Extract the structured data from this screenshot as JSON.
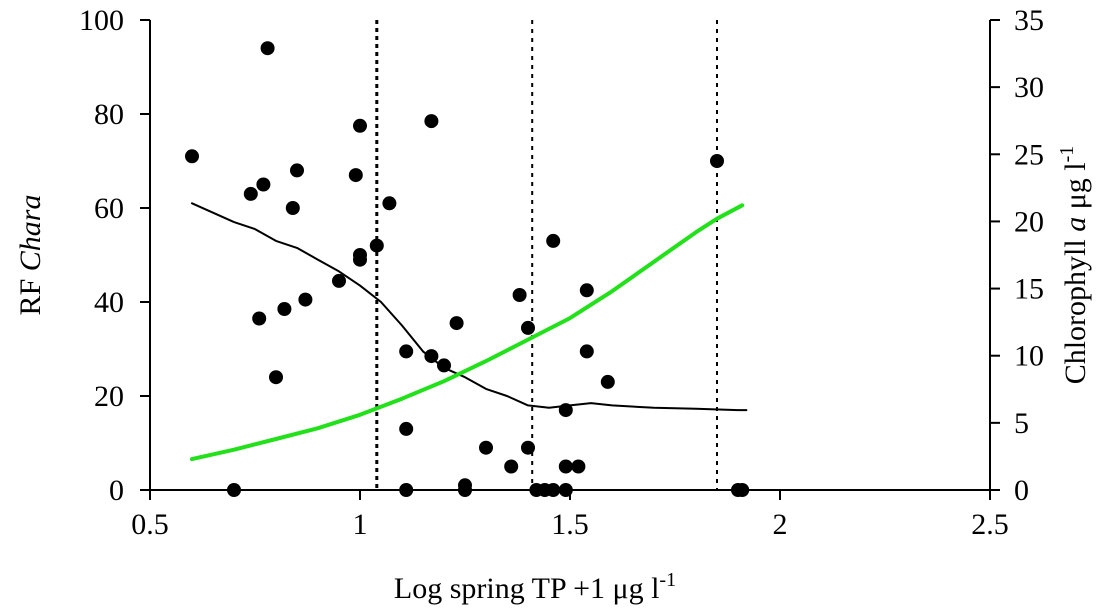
{
  "chart_data": {
    "type": "scatter",
    "x_axis": {
      "label_main": "Log spring TP +1 μg l",
      "label_sup": "-1",
      "range": [
        0.5,
        2.5
      ],
      "ticks": [
        0.5,
        1,
        1.5,
        2,
        2.5
      ],
      "tick_labels": [
        "0.5",
        "1",
        "1.5",
        "2",
        "2.5"
      ]
    },
    "y_axis_left": {
      "label_main": "RF ",
      "label_italic": "Chara",
      "range": [
        0,
        100
      ],
      "ticks": [
        0,
        20,
        40,
        60,
        80,
        100
      ],
      "tick_labels": [
        "0",
        "20",
        "40",
        "60",
        "80",
        "100"
      ]
    },
    "y_axis_right": {
      "label_main": "Chlorophyll ",
      "label_italic": "a",
      "label_unit": "  μg l",
      "label_sup": "-1",
      "range": [
        0,
        35
      ],
      "ticks": [
        0,
        5,
        10,
        15,
        20,
        25,
        30,
        35
      ],
      "tick_labels": [
        "0",
        "5",
        "10",
        "15",
        "20",
        "25",
        "30",
        "35"
      ]
    },
    "vertical_lines": [
      1.04,
      1.41,
      1.85
    ],
    "series": [
      {
        "type": "scatter",
        "axis": "left",
        "color": "#000000",
        "points": [
          [
            0.6,
            71
          ],
          [
            0.7,
            0
          ],
          [
            0.74,
            63
          ],
          [
            0.76,
            36.5
          ],
          [
            0.77,
            65
          ],
          [
            0.78,
            94
          ],
          [
            0.8,
            24
          ],
          [
            0.82,
            38.5
          ],
          [
            0.84,
            60
          ],
          [
            0.85,
            68
          ],
          [
            0.87,
            40.5
          ],
          [
            0.95,
            44.5
          ],
          [
            0.99,
            67
          ],
          [
            1.0,
            77.5
          ],
          [
            1.0,
            50
          ],
          [
            1.0,
            49
          ],
          [
            1.04,
            52
          ],
          [
            1.07,
            61
          ],
          [
            1.11,
            29.5
          ],
          [
            1.11,
            13
          ],
          [
            1.11,
            0
          ],
          [
            1.17,
            78.5
          ],
          [
            1.17,
            28.5
          ],
          [
            1.2,
            26.5
          ],
          [
            1.23,
            35.5
          ],
          [
            1.25,
            1
          ],
          [
            1.25,
            0
          ],
          [
            1.3,
            9
          ],
          [
            1.36,
            5
          ],
          [
            1.38,
            41.5
          ],
          [
            1.4,
            34.5
          ],
          [
            1.4,
            9
          ],
          [
            1.42,
            0
          ],
          [
            1.44,
            0
          ],
          [
            1.46,
            0
          ],
          [
            1.46,
            53
          ],
          [
            1.49,
            17
          ],
          [
            1.49,
            5
          ],
          [
            1.49,
            0
          ],
          [
            1.52,
            5
          ],
          [
            1.54,
            42.5
          ],
          [
            1.54,
            29.5
          ],
          [
            1.59,
            23
          ],
          [
            1.85,
            70
          ],
          [
            1.9,
            0
          ],
          [
            1.91,
            0
          ]
        ]
      },
      {
        "type": "line",
        "axis": "left",
        "color": "#000000",
        "points": [
          [
            0.6,
            61
          ],
          [
            0.65,
            59
          ],
          [
            0.7,
            57
          ],
          [
            0.75,
            55.5
          ],
          [
            0.8,
            53
          ],
          [
            0.85,
            51.5
          ],
          [
            0.9,
            49
          ],
          [
            0.95,
            46.5
          ],
          [
            1.0,
            43.5
          ],
          [
            1.05,
            40
          ],
          [
            1.1,
            35
          ],
          [
            1.15,
            29.5
          ],
          [
            1.2,
            26
          ],
          [
            1.25,
            24
          ],
          [
            1.3,
            21.5
          ],
          [
            1.35,
            20
          ],
          [
            1.4,
            18
          ],
          [
            1.45,
            17.5
          ],
          [
            1.5,
            18
          ],
          [
            1.55,
            18.5
          ],
          [
            1.6,
            18
          ],
          [
            1.7,
            17.5
          ],
          [
            1.8,
            17.3
          ],
          [
            1.9,
            17
          ],
          [
            1.92,
            17
          ]
        ]
      },
      {
        "type": "line",
        "axis": "right",
        "color": "#22e01a",
        "points": [
          [
            0.6,
            2.3
          ],
          [
            0.7,
            3.0
          ],
          [
            0.8,
            3.8
          ],
          [
            0.9,
            4.6
          ],
          [
            1.0,
            5.6
          ],
          [
            1.1,
            6.8
          ],
          [
            1.2,
            8.1
          ],
          [
            1.3,
            9.6
          ],
          [
            1.4,
            11.2
          ],
          [
            1.5,
            12.8
          ],
          [
            1.6,
            14.8
          ],
          [
            1.7,
            17.0
          ],
          [
            1.8,
            19.2
          ],
          [
            1.85,
            20.2
          ],
          [
            1.91,
            21.2
          ]
        ]
      }
    ]
  }
}
